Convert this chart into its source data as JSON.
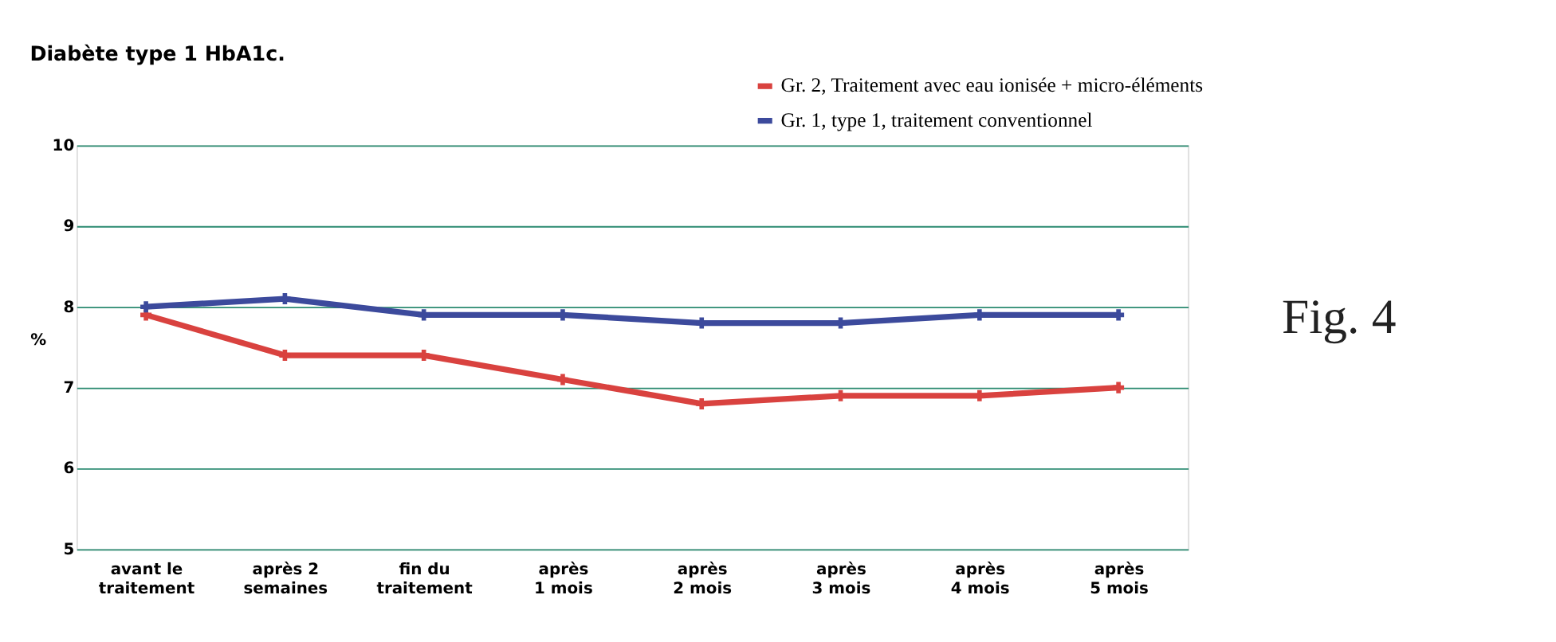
{
  "chart_data": {
    "type": "line",
    "title": "Diabète type 1 HbA1c.",
    "ylabel": "%",
    "categories": [
      "avant le\ntraitement",
      "après 2\nsemaines",
      "fin du\ntraitement",
      "après\n1 mois",
      "après\n2 mois",
      "après\n3 mois",
      "après\n4 mois",
      "après\n5 mois"
    ],
    "series": [
      {
        "name": "Gr. 2, Traitement avec eau ionisée + micro-éléments",
        "color": "#d9423f",
        "values": [
          7.9,
          7.4,
          7.4,
          7.1,
          6.8,
          6.9,
          6.9,
          7.0
        ]
      },
      {
        "name": "Gr. 1, type 1, traitement conventionnel",
        "color": "#3c4a9c",
        "values": [
          8.0,
          8.1,
          7.9,
          7.9,
          7.8,
          7.8,
          7.9,
          7.9
        ]
      }
    ],
    "ylim": [
      5,
      10
    ],
    "yticks": [
      5,
      6,
      7,
      8,
      9,
      10
    ],
    "grid": "y",
    "legend": "top right",
    "marker": "cross",
    "line_style": "solid",
    "annotations": [
      "Fig. 4"
    ]
  }
}
